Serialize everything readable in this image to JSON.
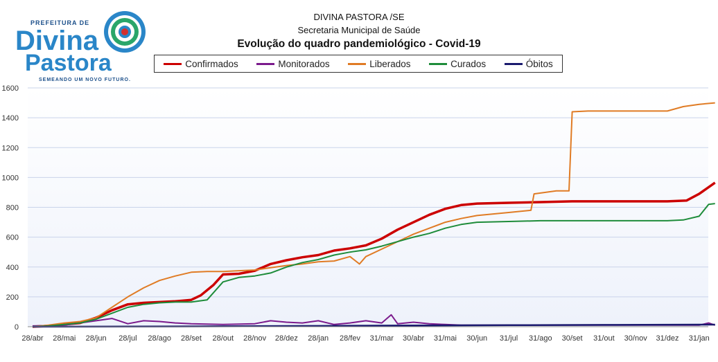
{
  "header": {
    "org_line1": "DIVINA PASTORA /SE",
    "org_line2": "Secretaria Municipal de Saúde"
  },
  "logo": {
    "top_text": "PREFEITURA DE",
    "word1": "Divina",
    "word2": "Pastora",
    "tagline": "SEMEANDO UM NOVO FUTURO."
  },
  "colors": {
    "confirmados": "#cc0000",
    "monitorados": "#7b1a8c",
    "liberados": "#e07b24",
    "curados": "#1e8c3a",
    "obitos": "#1a1a6e",
    "logo_blue": "#2a86c8",
    "logo_dark": "#1b4f8a"
  },
  "chart_data": {
    "type": "line",
    "title": "Evolução do quadro pandemiológico - Covid-19",
    "legend_position": "top",
    "grid": true,
    "ylim": [
      0,
      1600
    ],
    "yticks": [
      0,
      200,
      400,
      600,
      800,
      1000,
      1200,
      1400,
      1600
    ],
    "xticks": [
      "28/abr",
      "28/mai",
      "28/jun",
      "28/jul",
      "28/ago",
      "28/set",
      "28/out",
      "28/nov",
      "28/dez",
      "28/jan",
      "28/fev",
      "31/mar",
      "30/abr",
      "31/mai",
      "30/jun",
      "31/jul",
      "31/ago",
      "30/set",
      "31/out",
      "30/nov",
      "31/dez",
      "31/jan"
    ],
    "series": [
      {
        "name": "Confirmados",
        "x": [
          0,
          0.5,
          1,
          1.5,
          2,
          2.5,
          3,
          3.5,
          4,
          4.5,
          5,
          5.3,
          5.7,
          6,
          6.5,
          7,
          7.5,
          8,
          8.5,
          9,
          9.5,
          10,
          10.5,
          11,
          11.5,
          12,
          12.5,
          13,
          13.5,
          14,
          15,
          16,
          17,
          18,
          19,
          20,
          20.6,
          21,
          21.5
        ],
        "values": [
          0,
          5,
          15,
          25,
          60,
          110,
          150,
          160,
          165,
          170,
          180,
          210,
          280,
          350,
          355,
          375,
          420,
          445,
          465,
          480,
          510,
          525,
          545,
          590,
          650,
          700,
          750,
          790,
          815,
          825,
          830,
          835,
          840,
          840,
          840,
          840,
          845,
          890,
          965
        ]
      },
      {
        "name": "Monitorados",
        "x": [
          0,
          1,
          2,
          2.5,
          3,
          3.5,
          4,
          4.5,
          5,
          6,
          7,
          7.5,
          8,
          8.5,
          9,
          9.5,
          10,
          10.5,
          11,
          11.3,
          11.5,
          12,
          12.5,
          13,
          13.5,
          14,
          15,
          16,
          17,
          18,
          19,
          20,
          21,
          21.3,
          21.5
        ],
        "values": [
          5,
          10,
          40,
          55,
          20,
          40,
          35,
          25,
          20,
          15,
          20,
          40,
          30,
          25,
          40,
          15,
          25,
          40,
          25,
          80,
          20,
          30,
          20,
          15,
          10,
          10,
          10,
          10,
          10,
          10,
          10,
          10,
          10,
          25,
          10
        ]
      },
      {
        "name": "Liberados",
        "x": [
          0,
          0.5,
          1,
          1.5,
          2,
          2.5,
          3,
          3.5,
          4,
          4.5,
          5,
          5.5,
          6,
          6.5,
          7,
          7.5,
          8,
          8.5,
          9,
          9.5,
          10,
          10.3,
          10.5,
          11,
          11.5,
          12,
          12.5,
          13,
          13.5,
          14,
          15,
          15.7,
          15.8,
          16.5,
          16.9,
          17,
          17.5,
          18,
          19,
          20,
          20.5,
          21,
          21.5
        ],
        "values": [
          0,
          10,
          25,
          35,
          60,
          130,
          200,
          260,
          310,
          340,
          365,
          370,
          370,
          375,
          380,
          395,
          410,
          420,
          435,
          440,
          470,
          420,
          470,
          520,
          570,
          620,
          660,
          700,
          725,
          745,
          765,
          780,
          890,
          910,
          910,
          1440,
          1445,
          1445,
          1445,
          1445,
          1475,
          1490,
          1500
        ]
      },
      {
        "name": "Curados",
        "x": [
          0,
          0.5,
          1,
          1.5,
          2,
          2.5,
          3,
          3.5,
          4,
          4.5,
          5,
          5.5,
          6,
          6.5,
          7,
          7.5,
          8,
          8.5,
          9,
          9.5,
          10,
          10.5,
          11,
          11.5,
          12,
          12.5,
          13,
          13.5,
          14,
          15,
          16,
          17,
          18,
          19,
          20,
          20.5,
          21,
          21.3,
          21.5
        ],
        "values": [
          0,
          5,
          15,
          25,
          50,
          90,
          130,
          150,
          160,
          165,
          165,
          180,
          300,
          330,
          340,
          360,
          400,
          430,
          450,
          480,
          500,
          515,
          540,
          570,
          600,
          625,
          660,
          685,
          700,
          705,
          710,
          710,
          710,
          710,
          710,
          715,
          740,
          820,
          825
        ]
      },
      {
        "name": "Óbitos",
        "x": [
          0,
          3,
          6,
          9,
          12,
          15,
          18,
          21,
          21.5
        ],
        "values": [
          0,
          1,
          3,
          5,
          8,
          10,
          12,
          14,
          14
        ]
      }
    ]
  }
}
